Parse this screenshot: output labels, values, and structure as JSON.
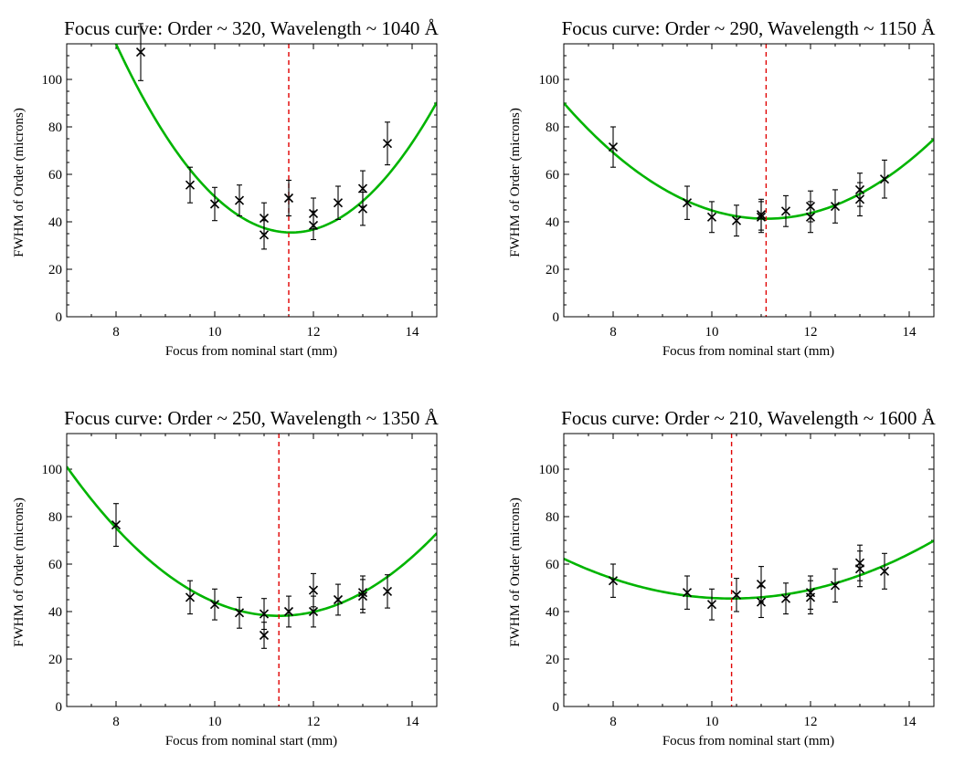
{
  "chart_data": [
    {
      "type": "scatter",
      "title": "Focus curve: Order ~ 320, Wavelength ~ 1040 Å",
      "xlabel": "Focus from nominal start (mm)",
      "ylabel": "FWHM of Order (microns)",
      "xlim": [
        7,
        14.5
      ],
      "ylim": [
        0,
        115
      ],
      "xticks": [
        8,
        10,
        12,
        14
      ],
      "yticks": [
        0,
        20,
        40,
        60,
        80,
        100
      ],
      "best_focus": 11.5,
      "fit": {
        "vertex_x": 11.55,
        "vertex_y": 35.5,
        "curvature": 6.3,
        "color": "#00b400"
      },
      "marker_color": "#e00000",
      "points": [
        {
          "x": 8.5,
          "y": 111.5,
          "err": 12
        },
        {
          "x": 9.5,
          "y": 55.5,
          "err": 7.5
        },
        {
          "x": 10.0,
          "y": 47.5,
          "err": 7
        },
        {
          "x": 10.5,
          "y": 49,
          "err": 6.5
        },
        {
          "x": 11.0,
          "y": 41.5,
          "err": 6.5
        },
        {
          "x": 11.0,
          "y": 34.5,
          "err": 6
        },
        {
          "x": 11.5,
          "y": 50,
          "err": 7.5
        },
        {
          "x": 12.0,
          "y": 43.5,
          "err": 6.5
        },
        {
          "x": 12.0,
          "y": 38.5,
          "err": 6
        },
        {
          "x": 12.5,
          "y": 48,
          "err": 7
        },
        {
          "x": 13.0,
          "y": 54,
          "err": 7.5
        },
        {
          "x": 13.0,
          "y": 45.5,
          "err": 7
        },
        {
          "x": 13.5,
          "y": 73,
          "err": 9
        }
      ]
    },
    {
      "type": "scatter",
      "title": "Focus curve: Order ~ 290, Wavelength ~ 1150 Å",
      "xlabel": "Focus from nominal start (mm)",
      "ylabel": "FWHM of Order (microns)",
      "xlim": [
        7,
        14.5
      ],
      "ylim": [
        0,
        115
      ],
      "xticks": [
        8,
        10,
        12,
        14
      ],
      "yticks": [
        0,
        20,
        40,
        60,
        80,
        100
      ],
      "best_focus": 11.1,
      "fit": {
        "vertex_x": 11.1,
        "vertex_y": 41.3,
        "curvature": 2.9,
        "color": "#00b400"
      },
      "marker_color": "#e00000",
      "points": [
        {
          "x": 8.0,
          "y": 71.5,
          "err": 8.5
        },
        {
          "x": 9.5,
          "y": 48,
          "err": 7
        },
        {
          "x": 10.0,
          "y": 42,
          "err": 6.5
        },
        {
          "x": 10.5,
          "y": 40.5,
          "err": 6.5
        },
        {
          "x": 11.0,
          "y": 43,
          "err": 6.5
        },
        {
          "x": 11.0,
          "y": 42,
          "err": 6.5
        },
        {
          "x": 11.5,
          "y": 44.5,
          "err": 6.5
        },
        {
          "x": 12.0,
          "y": 46.5,
          "err": 6.5
        },
        {
          "x": 12.0,
          "y": 42,
          "err": 6.5
        },
        {
          "x": 12.5,
          "y": 46.5,
          "err": 7
        },
        {
          "x": 13.0,
          "y": 53.5,
          "err": 7
        },
        {
          "x": 13.0,
          "y": 49.5,
          "err": 7
        },
        {
          "x": 13.5,
          "y": 58,
          "err": 8
        }
      ]
    },
    {
      "type": "scatter",
      "title": "Focus curve: Order ~ 250, Wavelength ~ 1350 Å",
      "xlabel": "Focus from nominal start (mm)",
      "ylabel": "FWHM of Order (microns)",
      "xlim": [
        7,
        14.5
      ],
      "ylim": [
        0,
        115
      ],
      "xticks": [
        8,
        10,
        12,
        14
      ],
      "yticks": [
        0,
        20,
        40,
        60,
        80,
        100
      ],
      "best_focus": 11.3,
      "fit": {
        "vertex_x": 11.3,
        "vertex_y": 38.2,
        "curvature": 3.4,
        "color": "#00b400"
      },
      "marker_color": "#e00000",
      "points": [
        {
          "x": 8.0,
          "y": 76.5,
          "err": 9
        },
        {
          "x": 9.5,
          "y": 46,
          "err": 7
        },
        {
          "x": 10.0,
          "y": 43,
          "err": 6.5
        },
        {
          "x": 10.5,
          "y": 39.5,
          "err": 6.5
        },
        {
          "x": 11.0,
          "y": 39,
          "err": 6.5
        },
        {
          "x": 11.0,
          "y": 30,
          "err": 5.5
        },
        {
          "x": 11.5,
          "y": 40,
          "err": 6.5
        },
        {
          "x": 12.0,
          "y": 49,
          "err": 7
        },
        {
          "x": 12.0,
          "y": 40,
          "err": 6.5
        },
        {
          "x": 12.5,
          "y": 45,
          "err": 6.5
        },
        {
          "x": 13.0,
          "y": 48,
          "err": 7
        },
        {
          "x": 13.0,
          "y": 46.5,
          "err": 7
        },
        {
          "x": 13.5,
          "y": 48.5,
          "err": 7
        }
      ]
    },
    {
      "type": "scatter",
      "title": "Focus curve: Order ~ 210, Wavelength ~ 1600 Å",
      "xlabel": "Focus from nominal start (mm)",
      "ylabel": "FWHM of Order (microns)",
      "xlim": [
        7,
        14.5
      ],
      "ylim": [
        0,
        115
      ],
      "xticks": [
        8,
        10,
        12,
        14
      ],
      "yticks": [
        0,
        20,
        40,
        60,
        80,
        100
      ],
      "best_focus": 10.4,
      "fit": {
        "vertex_x": 10.4,
        "vertex_y": 45.5,
        "curvature": 1.45,
        "color": "#00b400"
      },
      "marker_color": "#e00000",
      "points": [
        {
          "x": 8.0,
          "y": 53,
          "err": 7
        },
        {
          "x": 9.5,
          "y": 48,
          "err": 7
        },
        {
          "x": 10.0,
          "y": 43,
          "err": 6.5
        },
        {
          "x": 10.5,
          "y": 47,
          "err": 7
        },
        {
          "x": 11.0,
          "y": 51.5,
          "err": 7.5
        },
        {
          "x": 11.0,
          "y": 44,
          "err": 6.5
        },
        {
          "x": 11.5,
          "y": 45.5,
          "err": 6.5
        },
        {
          "x": 12.0,
          "y": 48,
          "err": 7
        },
        {
          "x": 12.0,
          "y": 46,
          "err": 7
        },
        {
          "x": 12.5,
          "y": 51,
          "err": 7
        },
        {
          "x": 13.0,
          "y": 60.5,
          "err": 7.5
        },
        {
          "x": 13.0,
          "y": 58,
          "err": 7.5
        },
        {
          "x": 13.5,
          "y": 57,
          "err": 7.5
        }
      ]
    }
  ]
}
